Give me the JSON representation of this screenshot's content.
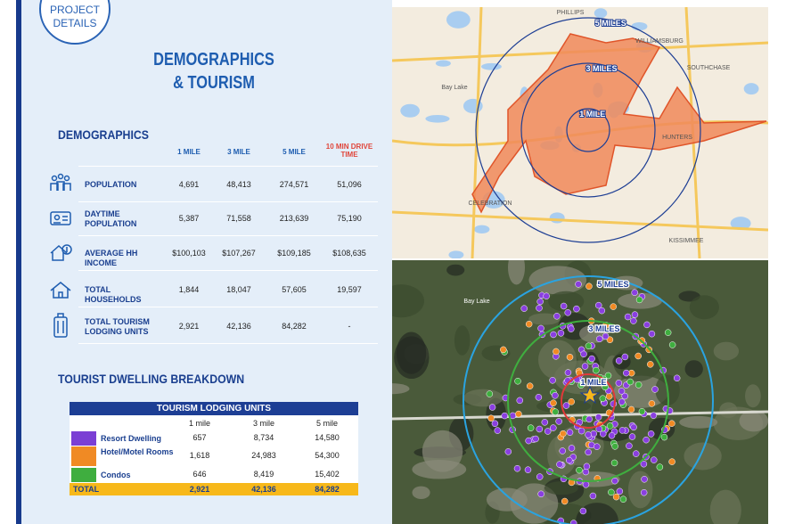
{
  "badge": [
    "PROJECT",
    "DETAILS"
  ],
  "title": "DEMOGRAPHICS & TOURISM",
  "demographics": {
    "heading": "DEMOGRAPHICS",
    "columns": [
      "1 MILE",
      "3 MILE",
      "5 MILE",
      "10 MIN DRIVE TIME"
    ],
    "rows": [
      {
        "label": "POPULATION",
        "values": [
          "4,691",
          "48,413",
          "274,571",
          "51,096"
        ]
      },
      {
        "label": "DAYTIME POPULATION",
        "values": [
          "5,387",
          "71,558",
          "213,639",
          "75,190"
        ]
      },
      {
        "label": "AVERAGE HH INCOME",
        "values": [
          "$100,103",
          "$107,267",
          "$109,185",
          "$108,635"
        ]
      },
      {
        "label": "TOTAL HOUSEHOLDS",
        "values": [
          "1,844",
          "18,047",
          "57,605",
          "19,597"
        ]
      },
      {
        "label": "TOTAL TOURISM LODGING UNITS",
        "values": [
          "2,921",
          "42,136",
          "84,282",
          "-"
        ]
      }
    ]
  },
  "tourist": {
    "heading": "TOURIST DWELLING BREAKDOWN",
    "table": {
      "title": "TOURISM LODGING UNITS",
      "columns": [
        "1 mile",
        "3 mile",
        "5 mile"
      ],
      "rows": [
        {
          "label": "Resort Dwelling",
          "color": "#7b3fd4",
          "values": [
            "657",
            "8,734",
            "14,580"
          ]
        },
        {
          "label": "Hotel/Motel Rooms",
          "color": "#f08a24",
          "values": [
            "1,618",
            "24,983",
            "54,300"
          ]
        },
        {
          "label": "Condos",
          "color": "#3fae3f",
          "values": [
            "646",
            "8,419",
            "15,402"
          ]
        }
      ],
      "total": {
        "label": "TOTAL",
        "values": [
          "2,921",
          "42,136",
          "84,282"
        ]
      }
    }
  },
  "maps": {
    "top": {
      "rings": [
        "5 MILES",
        "3 MILES",
        "1 MILE"
      ],
      "places": [
        "PHILLIPS",
        "WILLIAMSBURG",
        "SOUTHCHASE",
        "Bay Lake",
        "CELEBRATION",
        "HUNTERS",
        "KISSIMMEE"
      ]
    },
    "bottom": {
      "rings": [
        "5 MILES",
        "3 MILES",
        "1 MILE"
      ],
      "places": [
        "Bay Lake"
      ]
    }
  }
}
